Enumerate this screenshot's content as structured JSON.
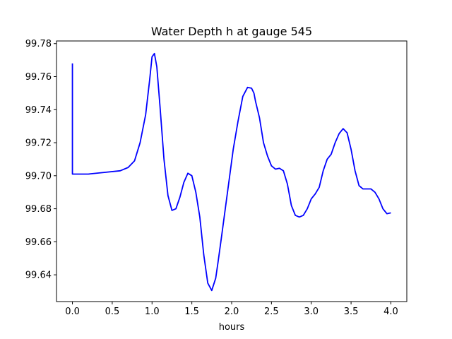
{
  "chart_data": {
    "type": "line",
    "title": "Water Depth h at gauge 545",
    "xlabel": "hours",
    "ylabel": "",
    "xlim": [
      -0.2,
      4.2
    ],
    "ylim": [
      99.6238,
      99.7816
    ],
    "xticks": [
      "0.0",
      "0.5",
      "1.0",
      "1.5",
      "2.0",
      "2.5",
      "3.0",
      "3.5",
      "4.0"
    ],
    "yticks": [
      "99.64",
      "99.66",
      "99.68",
      "99.70",
      "99.72",
      "99.74",
      "99.76",
      "99.78"
    ],
    "grid": false,
    "legend": "none",
    "line_color": "#0000ff",
    "series": [
      {
        "x": [
          0.0,
          0.0,
          0.01,
          0.2,
          0.4,
          0.6,
          0.7,
          0.78,
          0.85,
          0.92,
          0.97,
          1.0,
          1.03,
          1.06,
          1.1,
          1.15,
          1.2,
          1.25,
          1.3,
          1.35,
          1.4,
          1.45,
          1.5,
          1.55,
          1.6,
          1.65,
          1.7,
          1.75,
          1.8,
          1.83,
          1.87,
          1.92,
          1.97,
          2.02,
          2.08,
          2.14,
          2.2,
          2.25,
          2.28,
          2.3,
          2.35,
          2.4,
          2.45,
          2.5,
          2.55,
          2.6,
          2.65,
          2.7,
          2.75,
          2.8,
          2.85,
          2.9,
          2.95,
          3.0,
          3.05,
          3.1,
          3.15,
          3.2,
          3.25,
          3.3,
          3.35,
          3.4,
          3.45,
          3.5,
          3.55,
          3.6,
          3.65,
          3.7,
          3.75,
          3.8,
          3.85,
          3.9,
          3.95,
          4.0
        ],
        "y": [
          99.768,
          99.701,
          99.701,
          99.701,
          99.702,
          99.703,
          99.705,
          99.709,
          99.72,
          99.737,
          99.758,
          99.772,
          99.774,
          99.766,
          99.742,
          99.71,
          99.688,
          99.679,
          99.68,
          99.687,
          99.696,
          99.7015,
          99.7,
          99.69,
          99.675,
          99.652,
          99.635,
          99.6305,
          99.638,
          99.648,
          99.662,
          99.68,
          99.698,
          99.716,
          99.733,
          99.748,
          99.7535,
          99.753,
          99.75,
          99.745,
          99.735,
          99.72,
          99.712,
          99.706,
          99.704,
          99.7045,
          99.703,
          99.695,
          99.682,
          99.676,
          99.675,
          99.676,
          99.68,
          99.686,
          99.689,
          99.693,
          99.703,
          99.71,
          99.713,
          99.72,
          99.7255,
          99.7285,
          99.726,
          99.716,
          99.703,
          99.694,
          99.692,
          99.692,
          99.692,
          99.69,
          99.686,
          99.68,
          99.677,
          99.6775
        ]
      }
    ]
  }
}
